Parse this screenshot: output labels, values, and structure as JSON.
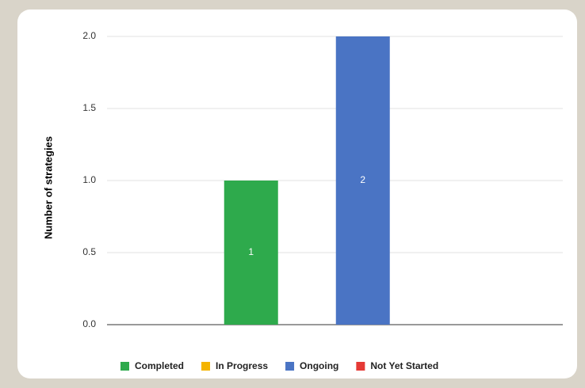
{
  "chart_data": {
    "type": "bar",
    "y_label": "Number of strategies",
    "categories": [
      null
    ],
    "series": [
      {
        "name": "Completed",
        "color": "#2eaa4c",
        "values": [
          1
        ]
      },
      {
        "name": "In Progress",
        "color": "#f4b400",
        "values": [
          0
        ]
      },
      {
        "name": "Ongoing",
        "color": "#4a74c4",
        "values": [
          2
        ]
      },
      {
        "name": "Not Yet Started",
        "color": "#e53935",
        "values": [
          0
        ]
      }
    ],
    "ylim": [
      0,
      2
    ],
    "yticks": [
      {
        "value": 0,
        "label": "0.0"
      },
      {
        "value": 0.5,
        "label": "0.5"
      },
      {
        "value": 1,
        "label": "1.0"
      },
      {
        "value": 1.5,
        "label": "1.5"
      },
      {
        "value": 2,
        "label": "2.0"
      }
    ],
    "grid": true
  }
}
